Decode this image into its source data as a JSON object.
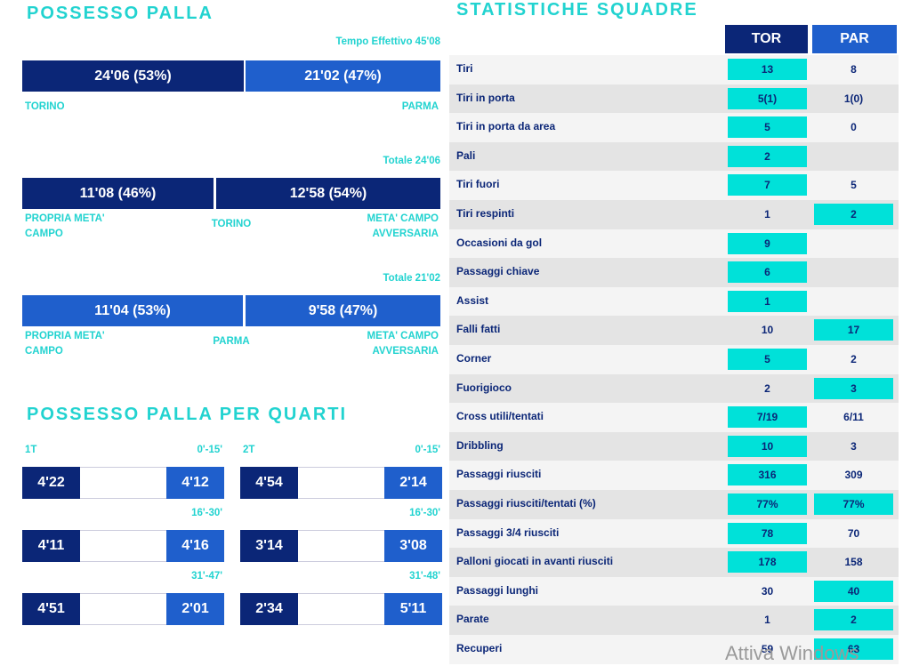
{
  "possession": {
    "title": "POSSESSO PALLA",
    "effective": "Tempo Effettivo 45'08",
    "tor": "24'06 (53%)",
    "par": "21'02 (47%)",
    "tor_label": "TORINO",
    "par_label": "PARMA"
  },
  "torino": {
    "total": "Totale 24'06",
    "own": "11'08 (46%)",
    "opp": "12'58 (54%)",
    "own_label": "PROPRIA META' CAMPO",
    "team": "TORINO",
    "opp_label": "META' CAMPO AVVERSARIA"
  },
  "parma": {
    "total": "Totale 21'02",
    "own": "11'04 (53%)",
    "opp": "9'58 (47%)",
    "own_label": "PROPRIA META' CAMPO",
    "team": "PARMA",
    "opp_label": "META' CAMPO AVVERSARIA"
  },
  "quarters": {
    "title": "POSSESSO PALLA PER QUARTI",
    "halves": [
      {
        "label": "1T",
        "periods": [
          {
            "range": "0'-15'",
            "tor": "4'22",
            "par": "4'12"
          },
          {
            "range": "16'-30'",
            "tor": "4'11",
            "par": "4'16"
          },
          {
            "range": "31'-47'",
            "tor": "4'51",
            "par": "2'01"
          }
        ]
      },
      {
        "label": "2T",
        "periods": [
          {
            "range": "0'-15'",
            "tor": "4'54",
            "par": "2'14"
          },
          {
            "range": "16'-30'",
            "tor": "3'14",
            "par": "3'08"
          },
          {
            "range": "31'-48'",
            "tor": "2'34",
            "par": "5'11"
          }
        ]
      }
    ]
  },
  "stats": {
    "title": "STATISTICHE SQUADRE",
    "headers": {
      "tor": "TOR",
      "par": "PAR"
    },
    "rows": [
      {
        "label": "Tiri",
        "tor": 13,
        "par": 8,
        "highlight": "tor"
      },
      {
        "label": "Tiri in porta",
        "tor": "5(1)",
        "par": "1(0)",
        "highlight": "tor"
      },
      {
        "label": "Tiri in porta da area",
        "tor": 5,
        "par": 0,
        "highlight": "tor"
      },
      {
        "label": "Pali",
        "tor": 2,
        "par": null,
        "highlight": "tor"
      },
      {
        "label": "Tiri fuori",
        "tor": 7,
        "par": 5,
        "highlight": "tor"
      },
      {
        "label": "Tiri respinti",
        "tor": 1,
        "par": 2,
        "highlight": "par"
      },
      {
        "label": "Occasioni da gol",
        "tor": 9,
        "par": null,
        "highlight": "tor"
      },
      {
        "label": "Passaggi chiave",
        "tor": 6,
        "par": null,
        "highlight": "tor"
      },
      {
        "label": "Assist",
        "tor": 1,
        "par": null,
        "highlight": "tor"
      },
      {
        "label": "Falli fatti",
        "tor": 10,
        "par": 17,
        "highlight": "par"
      },
      {
        "label": "Corner",
        "tor": 5,
        "par": 2,
        "highlight": "tor"
      },
      {
        "label": "Fuorigioco",
        "tor": 2,
        "par": 3,
        "highlight": "par"
      },
      {
        "label": "Cross utili/tentati",
        "tor": "7/19",
        "par": "6/11",
        "highlight": "tor"
      },
      {
        "label": "Dribbling",
        "tor": 10,
        "par": 3,
        "highlight": "tor"
      },
      {
        "label": "Passaggi riusciti",
        "tor": 316,
        "par": 309,
        "highlight": "tor"
      },
      {
        "label": "Passaggi riusciti/tentati (%)",
        "tor": "77%",
        "par": "77%",
        "highlight": "both"
      },
      {
        "label": "Passaggi 3/4 riusciti",
        "tor": 78,
        "par": 70,
        "highlight": "tor"
      },
      {
        "label": "Palloni giocati in avanti riusciti",
        "tor": 178,
        "par": 158,
        "highlight": "tor"
      },
      {
        "label": "Passaggi lunghi",
        "tor": 30,
        "par": 40,
        "highlight": "par"
      },
      {
        "label": "Parate",
        "tor": 1,
        "par": 2,
        "highlight": "par"
      },
      {
        "label": "Recuperi",
        "tor": 59,
        "par": 63,
        "highlight": "par"
      }
    ]
  },
  "watermark": "Attiva Windows"
}
